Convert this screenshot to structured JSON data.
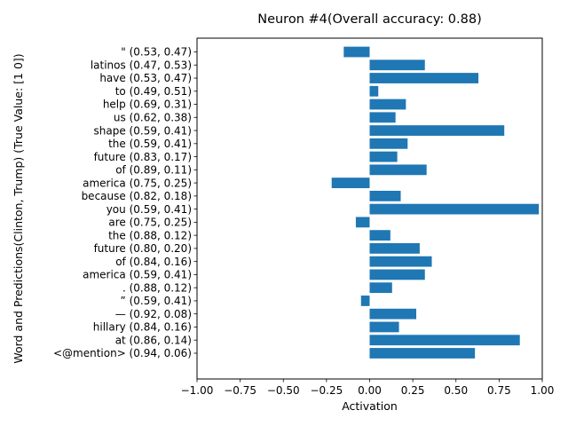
{
  "chart_data": {
    "type": "bar",
    "orientation": "horizontal",
    "title": "Neuron #4(Overall accuracy: 0.88)",
    "xlabel": "Activation",
    "ylabel": "Word and Predictions(Clinton, Trump) (True Value: [1 0])",
    "xlim": [
      -1.0,
      1.0
    ],
    "xticks": [
      "−1.00",
      "−0.75",
      "−0.50",
      "−0.25",
      "0.00",
      "0.25",
      "0.50",
      "0.75",
      "1.00"
    ],
    "grid": false,
    "bar_color": "#1f77b4",
    "categories": [
      "\" (0.53, 0.47)",
      "latinos (0.47, 0.53)",
      "have (0.53, 0.47)",
      "to (0.49, 0.51)",
      "help (0.69, 0.31)",
      "us (0.62, 0.38)",
      "shape (0.59, 0.41)",
      "the (0.59, 0.41)",
      "future (0.83, 0.17)",
      "of (0.89, 0.11)",
      "america (0.75, 0.25)",
      "because (0.82, 0.18)",
      "you (0.59, 0.41)",
      "are (0.75, 0.25)",
      "the (0.88, 0.12)",
      "future (0.80, 0.20)",
      "of (0.84, 0.16)",
      "america (0.59, 0.41)",
      ". (0.88, 0.12)",
      "” (0.59, 0.41)",
      "— (0.92, 0.08)",
      "hillary (0.84, 0.16)",
      "at (0.86, 0.14)",
      "<@mention> (0.94, 0.06)"
    ],
    "values": [
      -0.15,
      0.32,
      0.63,
      0.05,
      0.21,
      0.15,
      0.78,
      0.22,
      0.16,
      0.33,
      -0.22,
      0.18,
      0.98,
      -0.08,
      0.12,
      0.29,
      0.36,
      0.32,
      0.13,
      -0.05,
      0.27,
      0.17,
      0.87,
      0.61
    ]
  }
}
